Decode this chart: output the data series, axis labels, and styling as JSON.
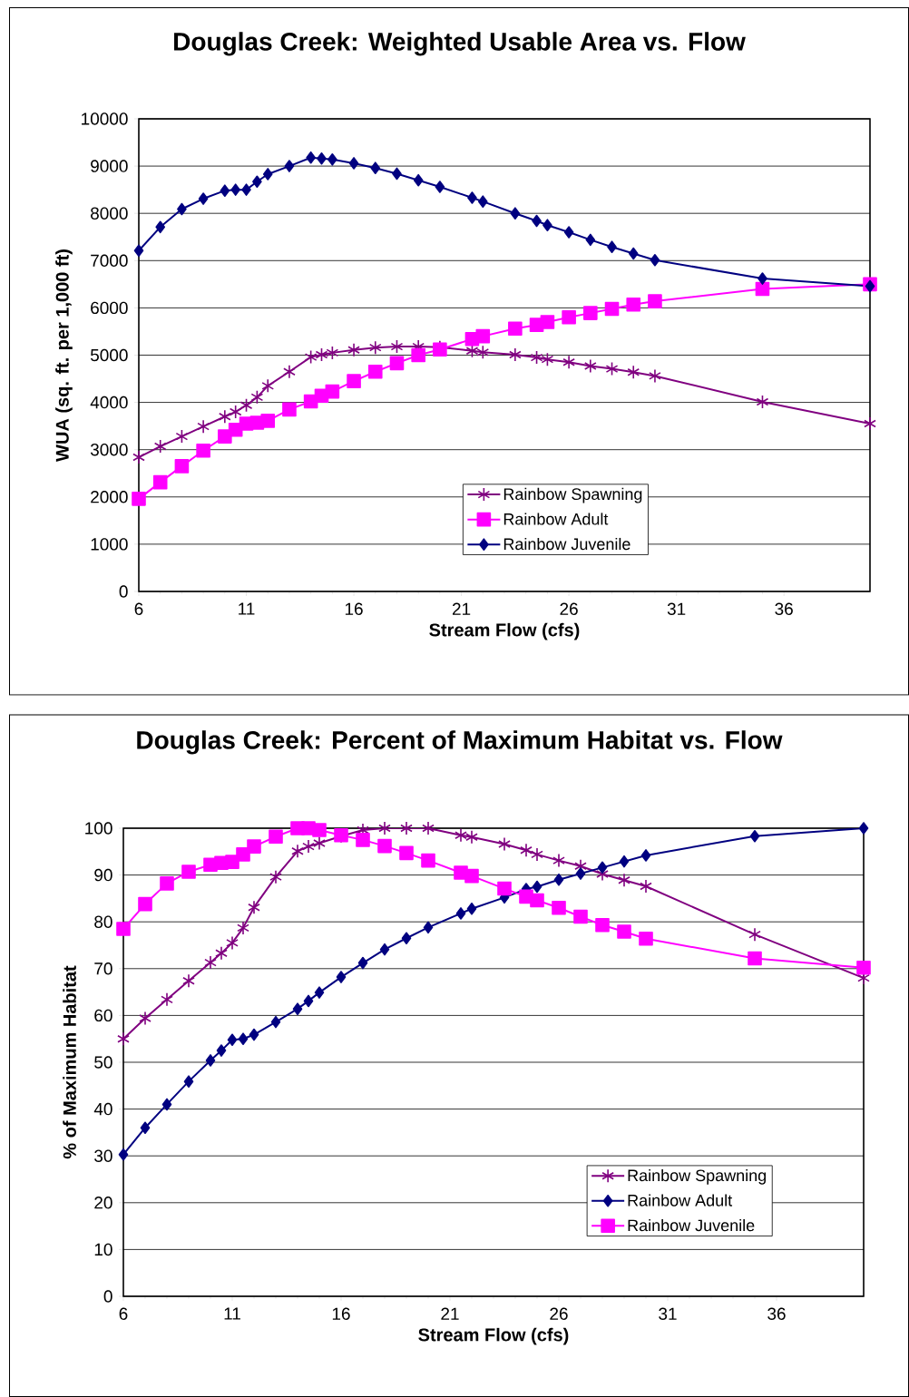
{
  "chart_data": [
    {
      "type": "line",
      "title": "Douglas Creek: Weighted Usable Area vs. Flow",
      "xlabel": "Stream Flow (cfs)",
      "ylabel": "WUA (sq. ft. per 1,000 ft)",
      "x": [
        6,
        7,
        8,
        9,
        10,
        10.5,
        11,
        11.5,
        12,
        13,
        14,
        14.5,
        15,
        16,
        17,
        18,
        19,
        20,
        21.5,
        22,
        23.5,
        24.5,
        25,
        26,
        27,
        28,
        29,
        30,
        35,
        40
      ],
      "xlim": [
        6,
        40
      ],
      "xticks": [
        6,
        11,
        16,
        21,
        26,
        31,
        36
      ],
      "ylim": [
        0,
        10000
      ],
      "yticks": [
        0,
        1000,
        2000,
        3000,
        4000,
        5000,
        6000,
        7000,
        8000,
        9000,
        10000
      ],
      "grid": "y",
      "legend": "bottom",
      "series": [
        {
          "name": "Rainbow Spawning",
          "color": "#800080",
          "marker": "cross",
          "values": [
            2840,
            3070,
            3280,
            3490,
            3700,
            3800,
            3940,
            4110,
            4350,
            4650,
            4960,
            5010,
            5050,
            5110,
            5160,
            5180,
            5180,
            5170,
            5090,
            5060,
            5010,
            4950,
            4910,
            4850,
            4770,
            4710,
            4640,
            4560,
            4010,
            3550
          ]
        },
        {
          "name": "Rainbow Adult",
          "color": "#ff00ff",
          "marker": "square",
          "values": [
            1960,
            2310,
            2650,
            2980,
            3280,
            3420,
            3550,
            3570,
            3610,
            3850,
            4020,
            4140,
            4230,
            4450,
            4650,
            4830,
            5000,
            5120,
            5340,
            5400,
            5560,
            5640,
            5700,
            5800,
            5890,
            5980,
            6070,
            6140,
            6400,
            6500
          ]
        },
        {
          "name": "Rainbow Juvenile",
          "color": "#000080",
          "marker": "diamond",
          "values": [
            7210,
            7710,
            8090,
            8310,
            8480,
            8500,
            8500,
            8670,
            8830,
            9000,
            9180,
            9160,
            9140,
            9060,
            8960,
            8840,
            8700,
            8560,
            8330,
            8250,
            8000,
            7840,
            7750,
            7600,
            7440,
            7290,
            7150,
            7010,
            6620,
            6460
          ]
        }
      ]
    },
    {
      "type": "line",
      "title": "Douglas Creek: Percent of Maximum Habitat vs. Flow",
      "xlabel": "Stream Flow (cfs)",
      "ylabel": "% of Maximum Habitat",
      "x": [
        6,
        7,
        8,
        9,
        10,
        10.5,
        11,
        11.5,
        12,
        13,
        14,
        14.5,
        15,
        16,
        17,
        18,
        19,
        20,
        21.5,
        22,
        23.5,
        24.5,
        25,
        26,
        27,
        28,
        29,
        30,
        35,
        40
      ],
      "xlim": [
        6,
        40
      ],
      "xticks": [
        6,
        11,
        16,
        21,
        26,
        31,
        36
      ],
      "ylim": [
        0,
        100
      ],
      "yticks": [
        0,
        10,
        20,
        30,
        40,
        50,
        60,
        70,
        80,
        90,
        100
      ],
      "grid": "y",
      "legend": "bottom right",
      "series": [
        {
          "name": "Rainbow Spawning",
          "color": "#800080",
          "marker": "cross",
          "values": [
            55.0,
            59.4,
            63.4,
            67.4,
            71.3,
            73.3,
            75.5,
            78.7,
            83.1,
            89.6,
            95.1,
            96.1,
            96.8,
            98.3,
            99.6,
            100,
            100,
            100,
            98.5,
            98.1,
            96.6,
            95.3,
            94.4,
            93.1,
            91.9,
            90.2,
            88.9,
            87.6,
            77.3,
            68.0
          ]
        },
        {
          "name": "Rainbow Adult",
          "color": "#000080",
          "marker": "diamond",
          "values": [
            30.3,
            36.0,
            41.0,
            45.9,
            50.4,
            52.5,
            54.8,
            55.0,
            55.9,
            58.6,
            61.4,
            63.1,
            64.9,
            68.2,
            71.2,
            74.1,
            76.5,
            78.8,
            81.8,
            82.8,
            85.2,
            87.0,
            87.5,
            89.0,
            90.3,
            91.6,
            92.9,
            94.2,
            98.3,
            100
          ]
        },
        {
          "name": "Rainbow Juvenile",
          "color": "#ff00ff",
          "marker": "square",
          "values": [
            78.5,
            83.8,
            88.2,
            90.7,
            92.2,
            92.6,
            92.8,
            94.4,
            96.1,
            98.2,
            100,
            100,
            99.6,
            98.5,
            97.5,
            96.2,
            94.7,
            93.1,
            90.5,
            89.8,
            87.1,
            85.4,
            84.6,
            83.0,
            81.1,
            79.3,
            77.9,
            76.4,
            72.2,
            70.2
          ]
        }
      ]
    }
  ]
}
